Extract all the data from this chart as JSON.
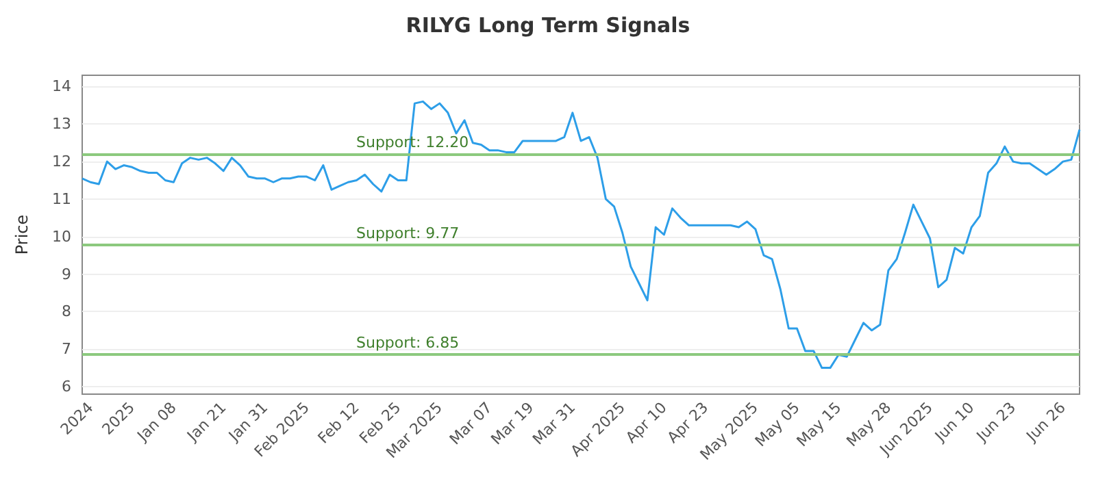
{
  "chart_data": {
    "type": "line",
    "title": "RILYG Long Term Signals",
    "ylabel": "Price",
    "categories": [
      null,
      "2024",
      null,
      null,
      null,
      null,
      "2025",
      null,
      null,
      null,
      null,
      "Jan 08",
      null,
      null,
      null,
      null,
      null,
      "Jan 21",
      null,
      null,
      null,
      null,
      "Jan 31",
      null,
      null,
      null,
      null,
      "Feb 2025",
      null,
      null,
      null,
      null,
      null,
      "Feb 12",
      null,
      null,
      null,
      null,
      "Feb 25",
      null,
      null,
      null,
      null,
      "Mar 2025",
      null,
      null,
      null,
      null,
      null,
      "Mar 07",
      null,
      null,
      null,
      null,
      "Mar 19",
      null,
      null,
      null,
      null,
      "Mar 31",
      null,
      null,
      null,
      null,
      null,
      "Apr 2025",
      null,
      null,
      null,
      null,
      "Apr 10",
      null,
      null,
      null,
      null,
      "Apr 23",
      null,
      null,
      null,
      null,
      null,
      "May 2025",
      null,
      null,
      null,
      null,
      "May 05",
      null,
      null,
      null,
      null,
      "May 15",
      null,
      null,
      null,
      null,
      null,
      "May 28",
      null,
      null,
      null,
      null,
      "Jun 2025",
      null,
      null,
      null,
      null,
      "Jun 10",
      null,
      null,
      null,
      null,
      "Jun 23",
      null,
      null,
      null,
      null,
      null,
      "Jun 26",
      null,
      null
    ],
    "series": [
      {
        "color": "#2d9ee8",
        "values": [
          11.55,
          11.45,
          11.4,
          12.0,
          11.8,
          11.9,
          11.85,
          11.75,
          11.7,
          11.7,
          11.5,
          11.45,
          11.95,
          12.1,
          12.05,
          12.1,
          11.95,
          11.75,
          12.1,
          11.9,
          11.6,
          11.55,
          11.55,
          11.45,
          11.55,
          11.55,
          11.6,
          11.6,
          11.5,
          11.9,
          11.25,
          11.35,
          11.45,
          11.5,
          11.65,
          11.4,
          11.2,
          11.65,
          11.5,
          11.5,
          13.55,
          13.6,
          13.4,
          13.55,
          13.3,
          12.75,
          13.1,
          12.5,
          12.45,
          12.3,
          12.3,
          12.25,
          12.25,
          12.55,
          12.55,
          12.55,
          12.55,
          12.55,
          12.65,
          13.3,
          12.55,
          12.65,
          12.1,
          11.0,
          10.8,
          10.1,
          9.2,
          8.75,
          8.3,
          10.25,
          10.05,
          10.75,
          10.5,
          10.3,
          10.3,
          10.3,
          10.3,
          10.3,
          10.3,
          10.25,
          10.4,
          10.2,
          9.5,
          9.4,
          8.6,
          7.55,
          7.55,
          6.95,
          6.95,
          6.5,
          6.5,
          6.85,
          6.8,
          7.25,
          7.7,
          7.5,
          7.65,
          9.1,
          9.4,
          10.1,
          10.85,
          10.4,
          9.95,
          8.65,
          8.85,
          9.7,
          9.55,
          10.25,
          10.55,
          11.7,
          11.95,
          12.4,
          12.0,
          11.95,
          11.95,
          11.8,
          11.65,
          11.8,
          12.0,
          12.05,
          12.85
        ]
      }
    ],
    "ylim": [
      5.8,
      14.3
    ],
    "yticks": [
      6,
      7,
      8,
      9,
      10,
      11,
      12,
      13,
      14
    ],
    "grid": "y",
    "marker": "none",
    "line_style": "solid",
    "ref_lines": [
      {
        "axis": "y",
        "value": 12.2,
        "label": "Support: 12.20",
        "color": "#8cc97e"
      },
      {
        "axis": "y",
        "value": 9.77,
        "label": "Support: 9.77",
        "color": "#8cc97e"
      },
      {
        "axis": "y",
        "value": 6.85,
        "label": "Support: 6.85",
        "color": "#8cc97e"
      }
    ]
  }
}
